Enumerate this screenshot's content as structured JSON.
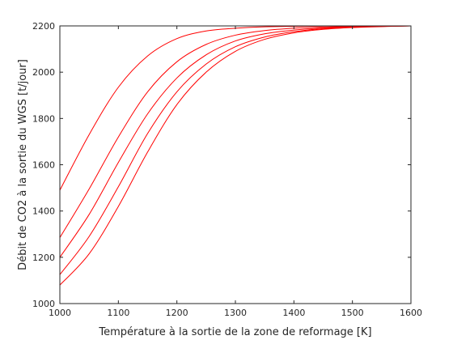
{
  "chart_data": {
    "type": "line",
    "title": "",
    "xlabel": "Température à la sortie de la zone de reformage [K]",
    "ylabel": "Débit de CO2 à la sortie du WGS [t/jour]",
    "xlim": [
      1000,
      1600
    ],
    "ylim": [
      1000,
      2200
    ],
    "xticks": [
      1000,
      1100,
      1200,
      1300,
      1400,
      1500,
      1600
    ],
    "yticks": [
      1000,
      1200,
      1400,
      1600,
      1800,
      2000,
      2200
    ],
    "x_tick_labels": [
      "1000",
      "1100",
      "1200",
      "1300",
      "1400",
      "1500",
      "1600"
    ],
    "y_tick_labels": [
      "1000",
      "1200",
      "1400",
      "1600",
      "1800",
      "2000",
      "2200"
    ],
    "grid": false,
    "legend": "none",
    "line_color": "#ff0000",
    "x": [
      1000,
      1050,
      1100,
      1150,
      1200,
      1250,
      1300,
      1350,
      1400,
      1450,
      1500,
      1550,
      1600
    ],
    "series": [
      {
        "values": [
          1490,
          1730,
          1935,
          2070,
          2145,
          2178,
          2190,
          2196,
          2198,
          2199,
          2200,
          2200,
          2200
        ]
      },
      {
        "values": [
          1285,
          1495,
          1720,
          1915,
          2045,
          2120,
          2160,
          2180,
          2190,
          2195,
          2198,
          2199,
          2200
        ]
      },
      {
        "values": [
          1200,
          1385,
          1610,
          1820,
          1975,
          2075,
          2135,
          2166,
          2182,
          2191,
          2196,
          2198,
          2200
        ]
      },
      {
        "values": [
          1125,
          1290,
          1505,
          1735,
          1915,
          2035,
          2110,
          2152,
          2175,
          2188,
          2195,
          2198,
          2200
        ]
      },
      {
        "values": [
          1080,
          1215,
          1420,
          1655,
          1860,
          2000,
          2090,
          2142,
          2170,
          2185,
          2193,
          2197,
          2200
        ]
      }
    ]
  }
}
